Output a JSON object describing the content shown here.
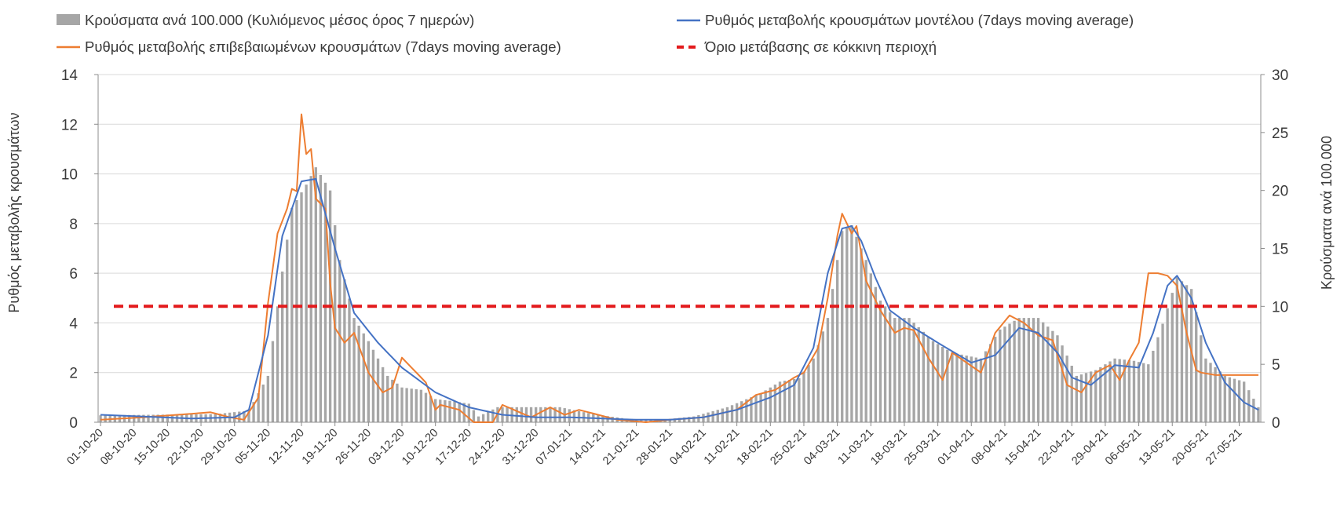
{
  "chart_data": {
    "type": "bar-line-combo",
    "legend": [
      {
        "key": "bars",
        "label": "Κρούσματα ανά 100.000 (Κυλιόμενος μέσος όρος 7 ημερών)",
        "color": "#a6a6a6",
        "symbol": "bar"
      },
      {
        "key": "model",
        "label": "Ρυθμός μεταβολής κρουσμάτων μοντέλου (7days moving average)",
        "color": "#4472c4",
        "symbol": "line"
      },
      {
        "key": "confirmed",
        "label": "Ρυθμός μεταβολής επιβεβαιωμένων κρουσμάτων (7days moving average)",
        "color": "#ed7d31",
        "symbol": "line"
      },
      {
        "key": "threshold",
        "label": "Όριο μετάβασης σε κόκκινη περιοχή",
        "color": "#e31a1c",
        "symbol": "dash"
      }
    ],
    "ylabel_left": "Ρυθμός μεταβολής κρουσμάτων",
    "ylabel_right": "Κρούσματα ανά 100.000",
    "ylim_left": [
      0,
      14
    ],
    "yticks_left": [
      "0",
      "2",
      "4",
      "6",
      "8",
      "10",
      "12",
      "14"
    ],
    "ylim_right": [
      0,
      30
    ],
    "yticks_right": [
      "0",
      "5",
      "10",
      "15",
      "20",
      "25",
      "30"
    ],
    "grid": "horizontal",
    "x_start": "01-10-20",
    "x_end": "31-05-21",
    "xtick_labels": [
      "01-10-20",
      "08-10-20",
      "15-10-20",
      "22-10-20",
      "29-10-20",
      "05-11-20",
      "12-11-20",
      "19-11-20",
      "26-11-20",
      "03-12-20",
      "10-12-20",
      "17-12-20",
      "24-12-20",
      "31-12-20",
      "07-01-21",
      "14-01-21",
      "21-01-21",
      "28-01-21",
      "04-02-21",
      "11-02-21",
      "18-02-21",
      "25-02-21",
      "04-03-21",
      "11-03-21",
      "18-03-21",
      "25-03-21",
      "01-04-21",
      "08-04-21",
      "15-04-21",
      "22-04-21",
      "29-04-21",
      "06-05-21",
      "13-05-21",
      "20-05-21",
      "27-05-21"
    ],
    "threshold_left": 4.67,
    "bars_anchor_dates": [
      "01-10-20",
      "25-10-20",
      "01-11-20",
      "05-11-20",
      "08-11-20",
      "10-11-20",
      "13-11-20",
      "15-11-20",
      "18-11-20",
      "20-11-20",
      "23-11-20",
      "26-11-20",
      "30-11-20",
      "03-12-20",
      "07-12-20",
      "10-12-20",
      "14-12-20",
      "17-12-20",
      "19-12-20",
      "23-12-20",
      "01-01-21",
      "05-01-21",
      "12-01-21",
      "19-01-21",
      "26-01-21",
      "02-02-21",
      "09-02-21",
      "16-02-21",
      "20-02-21",
      "24-02-21",
      "27-02-21",
      "02-03-21",
      "05-03-21",
      "07-03-21",
      "10-03-21",
      "13-03-21",
      "16-03-21",
      "19-03-21",
      "24-03-21",
      "28-03-21",
      "03-04-21",
      "07-04-21",
      "11-04-21",
      "15-04-21",
      "19-04-21",
      "23-04-21",
      "27-04-21",
      "01-05-21",
      "05-05-21",
      "08-05-21",
      "11-05-21",
      "14-05-21",
      "17-05-21",
      "20-05-21",
      "24-05-21",
      "28-05-21",
      "31-05-21"
    ],
    "bars_anchor_values": [
      0.6,
      0.7,
      1.0,
      4.0,
      13.0,
      18.5,
      20.5,
      22.0,
      20.0,
      14.0,
      9.0,
      7.0,
      4.0,
      3.0,
      2.8,
      2.0,
      1.8,
      1.6,
      0.5,
      1.3,
      1.3,
      1.3,
      0.7,
      0.3,
      0.2,
      0.5,
      1.3,
      2.5,
      3.5,
      3.8,
      5.5,
      9.0,
      16.5,
      17.0,
      14.0,
      10.5,
      9.0,
      9.0,
      7.0,
      6.0,
      5.5,
      8.0,
      9.0,
      9.0,
      7.5,
      4.0,
      4.5,
      5.5,
      5.3,
      5.0,
      8.5,
      12.5,
      11.5,
      5.5,
      4.0,
      3.5,
      1.3
    ],
    "model_anchor_dates": [
      "01-10-20",
      "20-10-20",
      "29-10-20",
      "01-11-20",
      "05-11-20",
      "08-11-20",
      "12-11-20",
      "15-11-20",
      "19-11-20",
      "23-11-20",
      "28-11-20",
      "03-12-20",
      "10-12-20",
      "17-12-20",
      "24-12-20",
      "31-12-20",
      "07-01-21",
      "14-01-21",
      "21-01-21",
      "28-01-21",
      "04-02-21",
      "11-02-21",
      "18-02-21",
      "23-02-21",
      "27-02-21",
      "02-03-21",
      "05-03-21",
      "07-03-21",
      "09-03-21",
      "12-03-21",
      "15-03-21",
      "20-03-21",
      "25-03-21",
      "01-04-21",
      "06-04-21",
      "11-04-21",
      "15-04-21",
      "19-04-21",
      "22-04-21",
      "26-04-21",
      "01-05-21",
      "06-05-21",
      "09-05-21",
      "12-05-21",
      "14-05-21",
      "17-05-21",
      "20-05-21",
      "24-05-21",
      "28-05-21",
      "31-05-21"
    ],
    "model_anchor_values": [
      0.3,
      0.15,
      0.2,
      0.5,
      3.5,
      7.5,
      9.7,
      9.8,
      7.0,
      4.4,
      3.2,
      2.2,
      1.2,
      0.6,
      0.3,
      0.2,
      0.2,
      0.15,
      0.1,
      0.1,
      0.2,
      0.5,
      1.0,
      1.5,
      3.0,
      6.0,
      7.8,
      7.9,
      7.3,
      5.8,
      4.5,
      3.8,
      3.2,
      2.4,
      2.7,
      3.8,
      3.6,
      2.8,
      1.8,
      1.5,
      2.3,
      2.2,
      3.6,
      5.5,
      5.9,
      5.0,
      3.2,
      1.6,
      0.8,
      0.5
    ],
    "confirmed_anchor_dates": [
      "01-10-20",
      "10-10-20",
      "24-10-20",
      "28-10-20",
      "31-10-20",
      "03-11-20",
      "05-11-20",
      "07-11-20",
      "09-11-20",
      "10-11-20",
      "11-11-20",
      "12-11-20",
      "13-11-20",
      "14-11-20",
      "15-11-20",
      "16-11-20",
      "17-11-20",
      "18-11-20",
      "19-11-20",
      "21-11-20",
      "23-11-20",
      "26-11-20",
      "29-11-20",
      "01-12-20",
      "03-12-20",
      "05-12-20",
      "08-12-20",
      "10-12-20",
      "11-12-20",
      "15-12-20",
      "18-12-20",
      "22-12-20",
      "24-12-20",
      "30-12-20",
      "03-01-21",
      "06-01-21",
      "09-01-21",
      "13-01-21",
      "17-01-21",
      "23-01-21",
      "28-01-21",
      "04-02-21",
      "11-02-21",
      "15-02-21",
      "19-02-21",
      "23-02-21",
      "25-02-21",
      "28-02-21",
      "02-03-21",
      "04-03-21",
      "05-03-21",
      "07-03-21",
      "08-03-21",
      "10-03-21",
      "13-03-21",
      "16-03-21",
      "18-03-21",
      "20-03-21",
      "23-03-21",
      "26-03-21",
      "28-03-21",
      "31-03-21",
      "03-04-21",
      "06-04-21",
      "09-04-21",
      "12-04-21",
      "15-04-21",
      "18-04-21",
      "21-04-21",
      "24-04-21",
      "27-04-21",
      "30-04-21",
      "02-05-21",
      "04-05-21",
      "06-05-21",
      "08-05-21",
      "10-05-21",
      "12-05-21",
      "14-05-21",
      "16-05-21",
      "18-05-21",
      "19-05-21",
      "22-05-21",
      "26-05-21"
    ],
    "confirmed_anchor_values": [
      0.1,
      0.2,
      0.4,
      0.2,
      0.1,
      1.0,
      4.8,
      7.6,
      8.6,
      9.4,
      9.3,
      12.4,
      10.8,
      11.0,
      9.0,
      8.8,
      8.6,
      5.6,
      3.8,
      3.2,
      3.6,
      2.0,
      1.2,
      1.4,
      2.6,
      2.2,
      1.6,
      0.5,
      0.7,
      0.5,
      0.0,
      0.0,
      0.7,
      0.2,
      0.6,
      0.3,
      0.5,
      0.3,
      0.1,
      0.0,
      0.1,
      0.2,
      0.5,
      1.1,
      1.3,
      1.8,
      2.0,
      3.0,
      5.0,
      7.5,
      8.4,
      7.6,
      7.9,
      5.7,
      4.5,
      3.6,
      3.8,
      3.7,
      2.6,
      1.7,
      2.8,
      2.4,
      2.0,
      3.6,
      4.3,
      4.0,
      3.5,
      3.3,
      1.5,
      1.2,
      2.0,
      2.3,
      1.7,
      2.5,
      3.2,
      6.0,
      6.0,
      5.9,
      5.5,
      3.6,
      2.1,
      2.0,
      1.9,
      1.9
    ]
  }
}
